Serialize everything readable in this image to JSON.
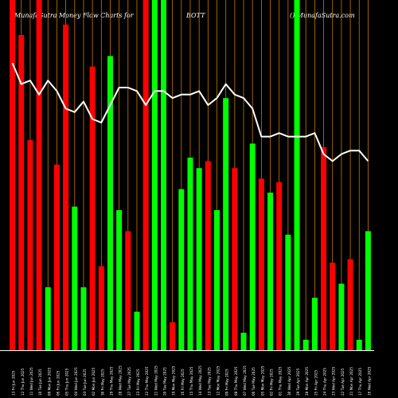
{
  "header": {
    "left": "MunafaSutra  Money Flow  Charts for",
    "symbol": "BOTT",
    "right": "() MunafaSutra.com"
  },
  "colors": {
    "background": "#000000",
    "up": "#00ff00",
    "down": "#ff0000",
    "line": "#ffffff",
    "grid": "#cc7700",
    "axis": "#ffffff"
  },
  "chart_data": {
    "type": "bar",
    "ylim": [
      0,
      100
    ],
    "categories": [
      "13 Fri Jun 2025",
      "12 Thu Jun 2025",
      "11 Wed Jun 2025",
      "10 Tue Jun 2025",
      "09 Mon Jun 2025",
      "06 Fri Jun 2025",
      "05 Thu Jun 2025",
      "04 Wed Jun 2025",
      "03 Tue Jun 2025",
      "02 Mon Jun 2025",
      "30 Fri May 2025",
      "29 Thu May 2025",
      "28 Wed May 2025",
      "27 Tue May 2025",
      "23 Fri May 2025",
      "22 Thu May 2025",
      "21 Wed May 2025",
      "20 Tue May 2025",
      "19 Mon May 2025",
      "16 Fri May 2025",
      "15 Thu May 2025",
      "14 Wed May 2025",
      "13 Tue May 2025",
      "12 Mon May 2025",
      "09 Fri May 2025",
      "08 Thu May 2025",
      "07 Wed May 2025",
      "06 Tue May 2025",
      "05 Mon May 2025",
      "02 Fri May 2025",
      "01 Thu May 2025",
      "30 Wed Apr 2025",
      "29 Tue Apr 2025",
      "28 Mon Apr 2025",
      "25 Fri Apr 2025",
      "24 Thu Apr 2025",
      "23 Wed Apr 2025",
      "22 Tue Apr 2025",
      "21 Mon Apr 2025",
      "17 Thu Apr 2025",
      "16 Wed Apr 2025"
    ],
    "values": [
      100,
      90,
      60,
      100,
      18,
      53,
      93,
      41,
      18,
      81,
      24,
      84,
      40,
      34,
      11,
      100,
      100,
      100,
      8,
      46,
      55,
      52,
      54,
      40,
      72,
      52,
      5,
      59,
      49,
      45,
      48,
      33,
      100,
      3,
      15,
      58,
      25,
      19,
      26,
      3,
      34
    ],
    "directions": [
      "down",
      "down",
      "down",
      "down",
      "up",
      "down",
      "down",
      "up",
      "up",
      "down",
      "down",
      "up",
      "up",
      "down",
      "up",
      "down",
      "up",
      "up",
      "down",
      "up",
      "up",
      "up",
      "down",
      "up",
      "up",
      "down",
      "up",
      "up",
      "down",
      "up",
      "down",
      "up",
      "up",
      "up",
      "up",
      "down",
      "down",
      "up",
      "down",
      "up",
      "up"
    ],
    "line": [
      82,
      76,
      77,
      73,
      77,
      74,
      69,
      68,
      71,
      66,
      65,
      70,
      75,
      75,
      74,
      70,
      74,
      74,
      72,
      73,
      73,
      74,
      70,
      72,
      76,
      73,
      72,
      69,
      61,
      61,
      62,
      61,
      61,
      61,
      62,
      56,
      54,
      56,
      57,
      57,
      54
    ]
  }
}
